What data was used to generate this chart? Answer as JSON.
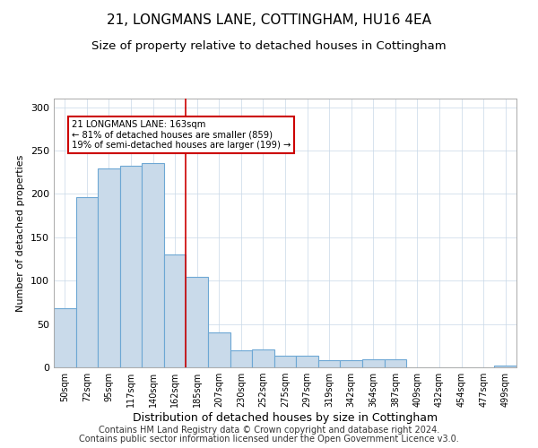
{
  "title": "21, LONGMANS LANE, COTTINGHAM, HU16 4EA",
  "subtitle": "Size of property relative to detached houses in Cottingham",
  "xlabel": "Distribution of detached houses by size in Cottingham",
  "ylabel": "Number of detached properties",
  "categories": [
    "50sqm",
    "72sqm",
    "95sqm",
    "117sqm",
    "140sqm",
    "162sqm",
    "185sqm",
    "207sqm",
    "230sqm",
    "252sqm",
    "275sqm",
    "297sqm",
    "319sqm",
    "342sqm",
    "364sqm",
    "387sqm",
    "409sqm",
    "432sqm",
    "454sqm",
    "477sqm",
    "499sqm"
  ],
  "values": [
    68,
    196,
    229,
    232,
    236,
    130,
    104,
    40,
    20,
    21,
    13,
    13,
    8,
    8,
    9,
    9,
    0,
    0,
    0,
    0,
    2
  ],
  "bar_color": "#c9daea",
  "bar_edge_color": "#6da7d4",
  "property_line_color": "#cc0000",
  "annotation_title": "21 LONGMANS LANE: 163sqm",
  "annotation_line1": "← 81% of detached houses are smaller (859)",
  "annotation_line2": "19% of semi-detached houses are larger (199) →",
  "annotation_box_color": "#ffffff",
  "annotation_box_edgecolor": "#cc0000",
  "ylim": [
    0,
    310
  ],
  "footer1": "Contains HM Land Registry data © Crown copyright and database right 2024.",
  "footer2": "Contains public sector information licensed under the Open Government Licence v3.0.",
  "title_fontsize": 11,
  "subtitle_fontsize": 9.5,
  "xlabel_fontsize": 9,
  "ylabel_fontsize": 8,
  "tick_fontsize": 7,
  "footer_fontsize": 7
}
